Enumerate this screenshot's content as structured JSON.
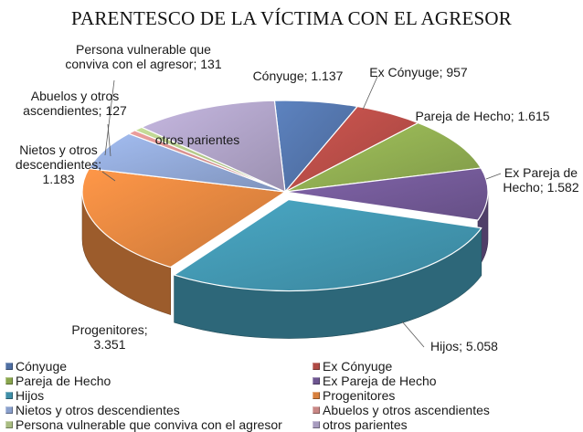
{
  "chart_data": {
    "type": "pie",
    "title": "PARENTESCO DE LA VÍCTIMA CON EL AGRESOR",
    "slices": [
      {
        "name": "Cónyuge",
        "value": 1137,
        "label": "Cónyuge; 1.137",
        "color": "#4f6fa3"
      },
      {
        "name": "Ex Cónyuge",
        "value": 957,
        "label": "Ex Cónyuge; 957",
        "color": "#b04a45"
      },
      {
        "name": "Pareja de Hecho",
        "value": 1615,
        "label": "Pareja de Hecho; 1.615",
        "color": "#8aa64e"
      },
      {
        "name": "Ex Pareja de Hecho",
        "value": 1582,
        "label": "Ex Pareja de Hecho; 1.582",
        "color": "#6e5691"
      },
      {
        "name": "Hijos",
        "value": 5058,
        "label": "Hijos; 5.058",
        "color": "#3f8fa8"
      },
      {
        "name": "Progenitores",
        "value": 3351,
        "label": "Progenitores; 3.351",
        "color": "#d8803d"
      },
      {
        "name": "Nietos y otros descendientes",
        "value": 1183,
        "label": "Nietos y otros descendientes; 1.183",
        "color": "#8aa0cc"
      },
      {
        "name": "Abuelos y otros ascendientes",
        "value": 127,
        "label": "Abuelos y otros ascendientes; 127",
        "color": "#c98785"
      },
      {
        "name": "Persona vulnerable que conviva con el agresor",
        "value": 131,
        "label": "Persona vulnerable que conviva con el agresor; 131",
        "color": "#a9bd82"
      },
      {
        "name": "otros parientes",
        "value": 2000,
        "label": "otros parientes",
        "color": "#a89cbf"
      }
    ],
    "legend_position": "bottom"
  }
}
